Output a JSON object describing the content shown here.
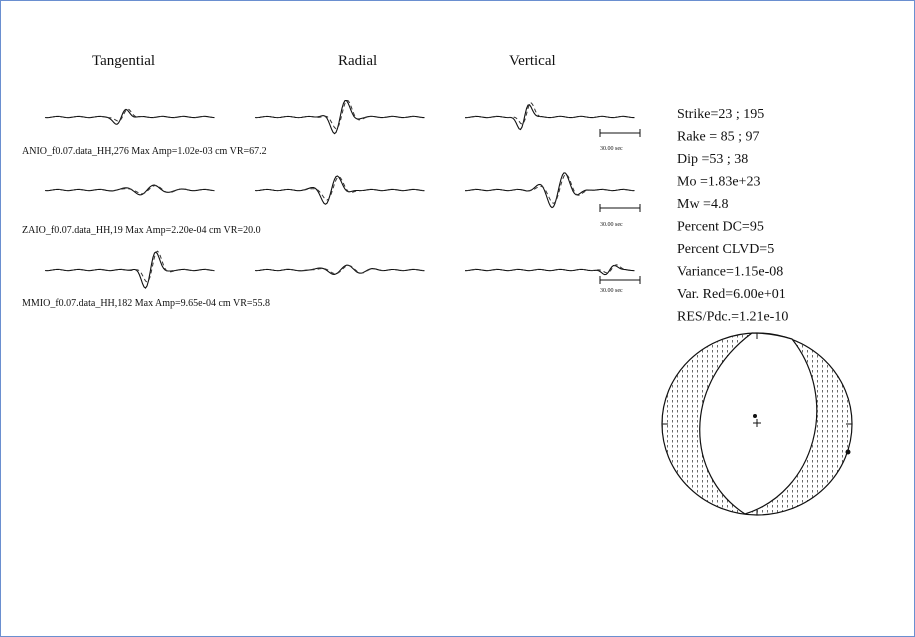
{
  "headers": [
    "Tangential",
    "Radial",
    "Vertical"
  ],
  "stations": [
    "ANIO_f0.07.data_HH,276  Max Amp=1.02e-03 cm  VR=67.2",
    "ZAIO_f0.07.data_HH,19  Max Amp=2.20e-04 cm  VR=20.0",
    "MMIO_f0.07.data_HH,182  Max Amp=9.65e-04 cm  VR=55.8"
  ],
  "scale_labels": [
    "30.00 sec",
    "30.00 sec",
    "30.00 sec"
  ],
  "parameters": [
    "Strike=23 ; 195",
    "Rake = 85 ; 97",
    "Dip =53 ; 38",
    "Mo =1.83e+23",
    "Mw =4.8",
    "Percent DC=95",
    "Percent CLVD=5",
    "Variance=1.15e-08",
    "Var. Red=6.00e+01",
    "RES/Pdc.=1.21e-10"
  ]
}
